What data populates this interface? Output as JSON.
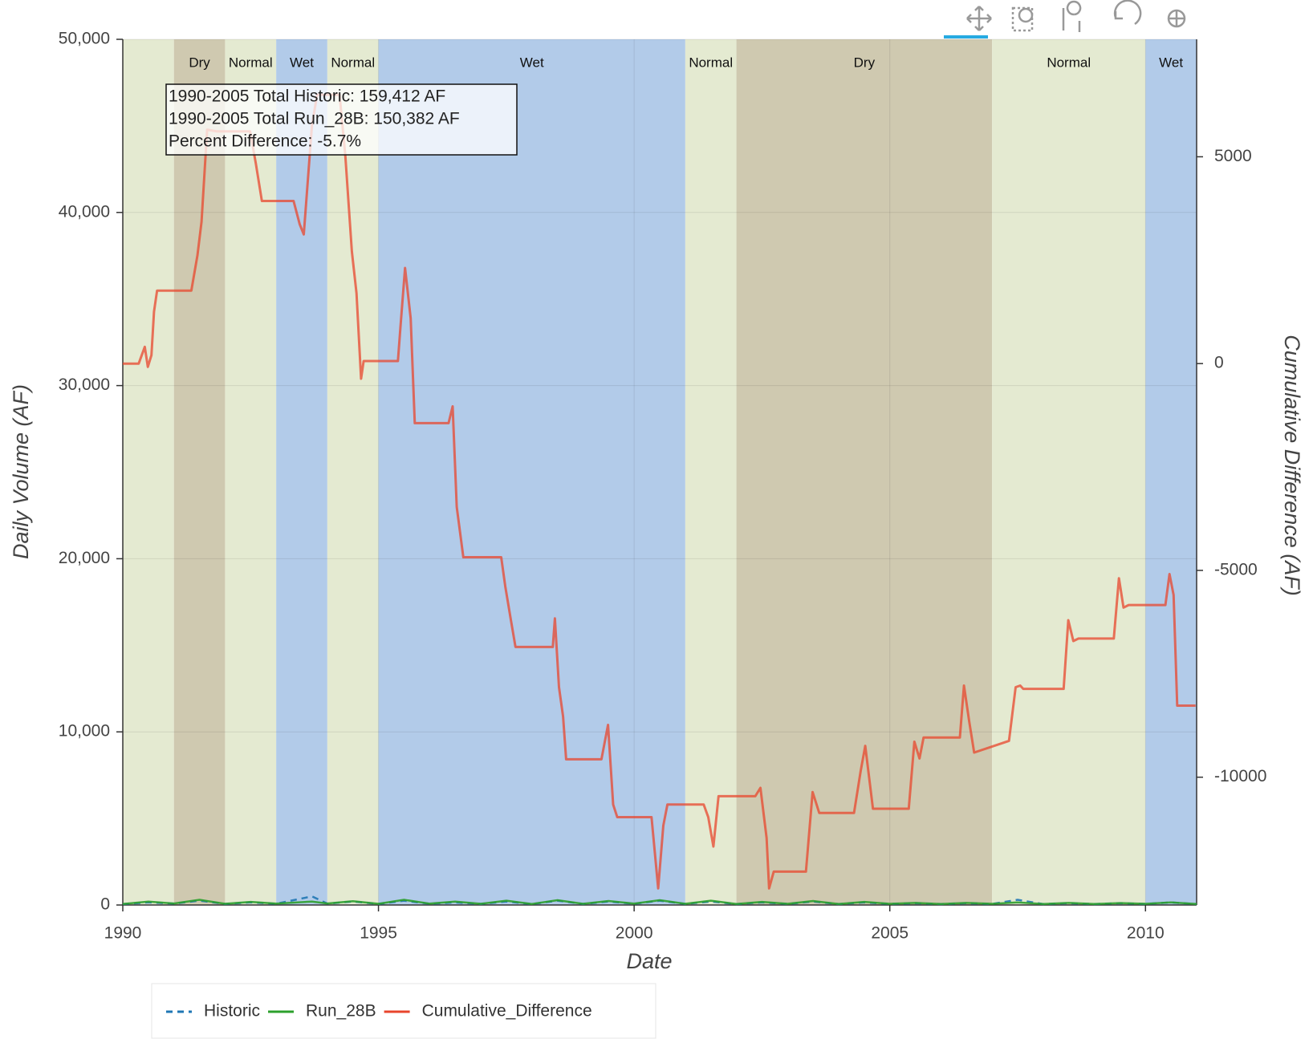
{
  "chart_data": {
    "type": "line",
    "xlabel": "Date",
    "ylabel": "Daily Volume (AF)",
    "y2label": "Cumulative Difference (AF)",
    "xlim": [
      1990,
      2011
    ],
    "xticks": [
      1990,
      1995,
      2000,
      2005,
      2010
    ],
    "ylim": [
      0,
      50000
    ],
    "yticks": [
      {
        "value": 0,
        "label": "0"
      },
      {
        "value": 10000,
        "label": "10,000"
      },
      {
        "value": 20000,
        "label": "20,000"
      },
      {
        "value": 30000,
        "label": "30,000"
      },
      {
        "value": 40000,
        "label": "40,000"
      },
      {
        "value": 50000,
        "label": "50,000"
      }
    ],
    "y2lim": [
      -13090,
      7840
    ],
    "y2ticks": [
      -10000,
      -5000,
      0,
      5000
    ],
    "grid": true,
    "legend": "bottom-left",
    "bands": [
      {
        "start": 1990,
        "end": 1991,
        "label": null,
        "color": "#e4ead1"
      },
      {
        "start": 1991,
        "end": 1992,
        "label": "Dry",
        "color": "#cfc9b0"
      },
      {
        "start": 1992,
        "end": 1993,
        "label": "Normal",
        "color": "#e4ead1"
      },
      {
        "start": 1993,
        "end": 1994,
        "label": "Wet",
        "color": "#b2cbe9"
      },
      {
        "start": 1994,
        "end": 1995,
        "label": "Normal",
        "color": "#e4ead1"
      },
      {
        "start": 1995,
        "end": 2001,
        "label": "Wet",
        "color": "#b2cbe9"
      },
      {
        "start": 2001,
        "end": 2002,
        "label": "Normal",
        "color": "#e4ead1"
      },
      {
        "start": 2002,
        "end": 2007,
        "label": "Dry",
        "color": "#cfc9b0"
      },
      {
        "start": 2007,
        "end": 2010,
        "label": "Normal",
        "color": "#e4ead1"
      },
      {
        "start": 2010,
        "end": 2011,
        "label": "Wet",
        "color": "#b2cbe9"
      }
    ],
    "annotation": [
      "1990-2005 Total Historic: 159,412 AF",
      "1990-2005 Total Run_28B: 150,382 AF",
      "Percent Difference: -5.7%"
    ],
    "series": [
      {
        "name": "Historic",
        "color": "#1f77b4",
        "dash": true,
        "x": [
          1990,
          1990.5,
          1991,
          1991.5,
          1992,
          1992.5,
          1993,
          1993.7,
          1994,
          1994.5,
          1995,
          1995.5,
          1996,
          1996.5,
          1997,
          1997.5,
          1998,
          1998.5,
          1999,
          1999.5,
          2000,
          2000.5,
          2001,
          2001.5,
          2002,
          2002.5,
          2003,
          2003.5,
          2004,
          2004.5,
          2005,
          2005.5,
          2006,
          2006.5,
          2007,
          2007.5,
          2008,
          2008.5,
          2009,
          2009.5,
          2010,
          2010.5,
          2011
        ],
        "values": [
          50,
          150,
          80,
          250,
          60,
          150,
          70,
          500,
          80,
          200,
          60,
          250,
          70,
          150,
          60,
          200,
          50,
          250,
          60,
          200,
          70,
          250,
          60,
          200,
          50,
          150,
          60,
          200,
          50,
          150,
          60,
          100,
          50,
          100,
          60,
          300,
          50,
          100,
          50,
          100,
          60,
          150,
          50
        ]
      },
      {
        "name": "Run_28B",
        "color": "#2ca02c",
        "dash": false,
        "x": [
          1990,
          1990.5,
          1991,
          1991.5,
          1992,
          1992.5,
          1993,
          1993.7,
          1994,
          1994.5,
          1995,
          1995.5,
          1996,
          1996.5,
          1997,
          1997.5,
          1998,
          1998.5,
          1999,
          1999.5,
          2000,
          2000.5,
          2001,
          2001.5,
          2002,
          2002.5,
          2003,
          2003.5,
          2004,
          2004.5,
          2005,
          2005.5,
          2006,
          2006.5,
          2007,
          2007.5,
          2008,
          2008.5,
          2009,
          2009.5,
          2010,
          2010.5,
          2011
        ],
        "values": [
          60,
          200,
          90,
          300,
          70,
          180,
          80,
          200,
          90,
          220,
          70,
          300,
          80,
          200,
          70,
          250,
          60,
          280,
          70,
          230,
          80,
          280,
          70,
          250,
          60,
          180,
          70,
          230,
          60,
          180,
          70,
          120,
          60,
          120,
          70,
          150,
          60,
          120,
          60,
          110,
          70,
          150,
          60
        ]
      },
      {
        "name": "Cumulative_Difference",
        "color": "#e8452c",
        "dash": false,
        "axis": "y2",
        "x": [
          1990.0,
          1990.31,
          1990.43,
          1990.49,
          1990.56,
          1990.61,
          1990.67,
          1991.34,
          1991.46,
          1991.54,
          1991.65,
          1991.83,
          1992.49,
          1992.6,
          1992.72,
          1993.34,
          1993.46,
          1993.54,
          1993.62,
          1993.7,
          1993.8,
          1994.24,
          1994.35,
          1994.48,
          1994.57,
          1994.66,
          1994.71,
          1995.38,
          1995.43,
          1995.52,
          1995.63,
          1995.71,
          1996.37,
          1996.45,
          1996.53,
          1996.66,
          1997.4,
          1997.48,
          1997.59,
          1997.68,
          1998.41,
          1998.45,
          1998.53,
          1998.61,
          1998.67,
          1999.36,
          1999.49,
          1999.59,
          1999.67,
          2000.34,
          2000.47,
          2000.57,
          2000.65,
          2001.36,
          2001.45,
          2001.55,
          2001.65,
          2002.37,
          2002.47,
          2002.59,
          2002.64,
          2002.73,
          2003.36,
          2003.49,
          2003.62,
          2004.3,
          2004.43,
          2004.52,
          2004.67,
          2005.37,
          2005.48,
          2005.58,
          2005.66,
          2006.37,
          2006.45,
          2006.55,
          2006.65,
          2007.33,
          2007.46,
          2007.55,
          2007.61,
          2008.4,
          2008.49,
          2008.59,
          2008.69,
          2009.38,
          2009.48,
          2009.57,
          2009.67,
          2010.39,
          2010.47,
          2010.55,
          2010.62,
          2010.98
        ],
        "values": [
          0,
          0,
          405,
          -81,
          203,
          1257,
          1763,
          1763,
          2615,
          3426,
          5655,
          5615,
          5615,
          4845,
          3932,
          3932,
          3365,
          3122,
          4439,
          5757,
          6500,
          6500,
          5047,
          2716,
          1703,
          -365,
          61,
          61,
          892,
          2311,
          1095,
          -1439,
          -1439,
          -1034,
          -3466,
          -4682,
          -4682,
          -5392,
          -6203,
          -6851,
          -6851,
          -6162,
          -7824,
          -8534,
          -9567,
          -9567,
          -8736,
          -10662,
          -10966,
          -10966,
          -12689,
          -11169,
          -10662,
          -10662,
          -10966,
          -11676,
          -10459,
          -10459,
          -10257,
          -11473,
          -12689,
          -12284,
          -12284,
          -10358,
          -10865,
          -10865,
          -9851,
          -9243,
          -10763,
          -10763,
          -9142,
          -9547,
          -9040,
          -9040,
          -7784,
          -8635,
          -9405,
          -9121,
          -7824,
          -7784,
          -7865,
          -7865,
          -6203,
          -6709,
          -6648,
          -6648,
          -5189,
          -5899,
          -5838,
          -5838,
          -5088,
          -5595,
          -8270,
          -8270
        ]
      }
    ]
  }
}
